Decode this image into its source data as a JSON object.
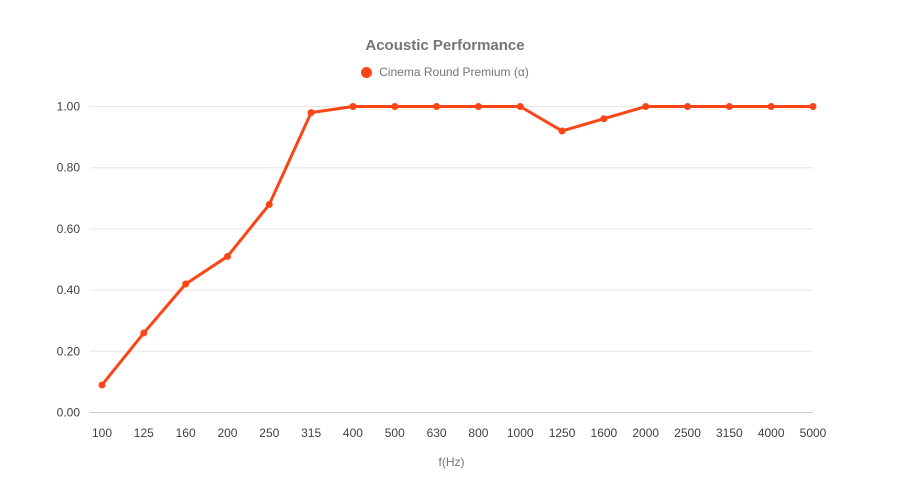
{
  "title": "Acoustic Performance",
  "legend": {
    "series_label": "Cinema Round Premium (α)"
  },
  "colors": {
    "series": "#FA4616",
    "title_text": "#757575",
    "legend_text": "#757575",
    "axis_text": "#404040",
    "gridline": "#e6e6e6",
    "axis_line": "#cccccc",
    "background": "#ffffff"
  },
  "chart_data": {
    "type": "line",
    "title": "Acoustic Performance",
    "series_name": "Cinema Round Premium (α)",
    "categories": [
      "100",
      "125",
      "160",
      "200",
      "250",
      "315",
      "400",
      "500",
      "630",
      "800",
      "1000",
      "1250",
      "1600",
      "2000",
      "2500",
      "3150",
      "4000",
      "5000"
    ],
    "values": [
      0.09,
      0.26,
      0.42,
      0.51,
      0.68,
      0.98,
      1.0,
      1.0,
      1.0,
      1.0,
      1.0,
      0.92,
      0.96,
      1.0,
      1.0,
      1.0,
      1.0,
      1.0
    ],
    "xlabel": "f(Hz)",
    "ylabel": "",
    "ylim": [
      0,
      1
    ],
    "yticks": [
      "0.00",
      "0.20",
      "0.40",
      "0.60",
      "0.80",
      "1.00"
    ],
    "grid": true,
    "legend_position": "top"
  }
}
